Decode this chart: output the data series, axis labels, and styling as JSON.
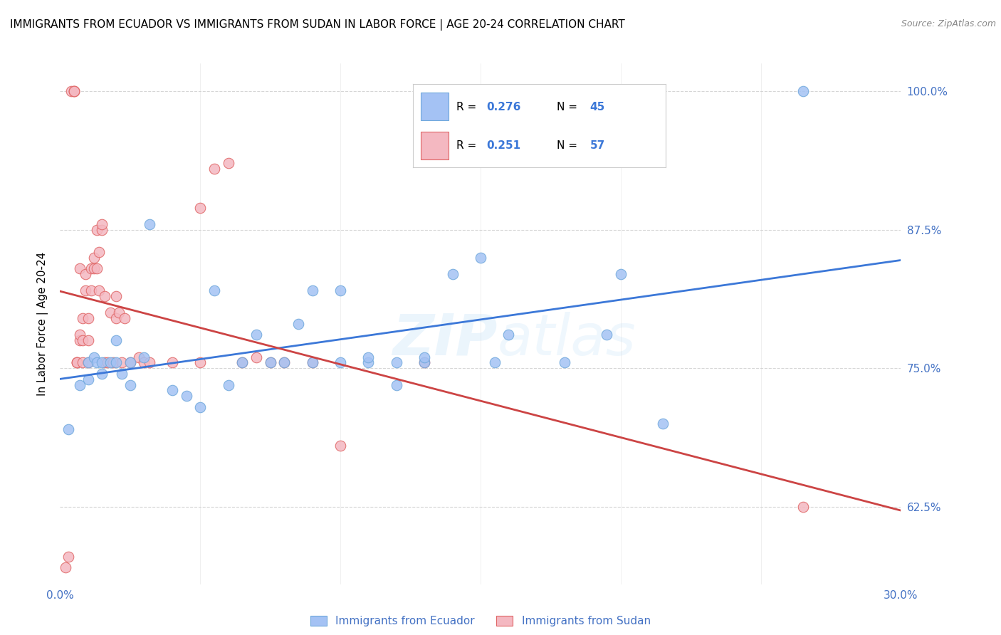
{
  "title": "IMMIGRANTS FROM ECUADOR VS IMMIGRANTS FROM SUDAN IN LABOR FORCE | AGE 20-24 CORRELATION CHART",
  "source": "Source: ZipAtlas.com",
  "ylabel": "In Labor Force | Age 20-24",
  "watermark": "ZIPatlas",
  "xlim": [
    0.0,
    0.3
  ],
  "ylim": [
    0.555,
    1.025
  ],
  "yticks": [
    0.625,
    0.75,
    0.875,
    1.0
  ],
  "ytick_labels": [
    "62.5%",
    "75.0%",
    "87.5%",
    "100.0%"
  ],
  "xticks": [
    0.0,
    0.05,
    0.1,
    0.15,
    0.2,
    0.25,
    0.3
  ],
  "xtick_labels": [
    "0.0%",
    "",
    "",
    "",
    "",
    "",
    "30.0%"
  ],
  "ecuador_color": "#a4c2f4",
  "ecuador_edge": "#6fa8dc",
  "sudan_color": "#f4b8c1",
  "sudan_edge": "#e06666",
  "ecuador_R": 0.276,
  "ecuador_N": 45,
  "sudan_R": 0.251,
  "sudan_N": 57,
  "ecuador_line_color": "#3c78d8",
  "sudan_line_color": "#cc4444",
  "background_color": "#ffffff",
  "grid_color": "#cccccc",
  "ecuador_x": [
    0.003,
    0.007,
    0.01,
    0.01,
    0.012,
    0.013,
    0.015,
    0.015,
    0.018,
    0.02,
    0.02,
    0.022,
    0.025,
    0.025,
    0.03,
    0.032,
    0.04,
    0.045,
    0.05,
    0.055,
    0.06,
    0.065,
    0.07,
    0.075,
    0.08,
    0.085,
    0.09,
    0.09,
    0.1,
    0.1,
    0.11,
    0.11,
    0.12,
    0.12,
    0.13,
    0.13,
    0.14,
    0.15,
    0.155,
    0.16,
    0.18,
    0.195,
    0.2,
    0.215,
    0.265
  ],
  "ecuador_y": [
    0.695,
    0.735,
    0.74,
    0.755,
    0.76,
    0.755,
    0.745,
    0.755,
    0.755,
    0.755,
    0.775,
    0.745,
    0.735,
    0.755,
    0.76,
    0.88,
    0.73,
    0.725,
    0.715,
    0.82,
    0.735,
    0.755,
    0.78,
    0.755,
    0.755,
    0.79,
    0.755,
    0.82,
    0.755,
    0.82,
    0.755,
    0.76,
    0.735,
    0.755,
    0.755,
    0.76,
    0.835,
    0.85,
    0.755,
    0.78,
    0.755,
    0.78,
    0.835,
    0.7,
    1.0
  ],
  "sudan_x": [
    0.002,
    0.003,
    0.004,
    0.005,
    0.005,
    0.005,
    0.006,
    0.006,
    0.006,
    0.007,
    0.007,
    0.007,
    0.008,
    0.008,
    0.008,
    0.009,
    0.009,
    0.01,
    0.01,
    0.01,
    0.011,
    0.011,
    0.012,
    0.012,
    0.013,
    0.013,
    0.014,
    0.014,
    0.015,
    0.015,
    0.016,
    0.016,
    0.017,
    0.018,
    0.019,
    0.02,
    0.02,
    0.021,
    0.022,
    0.023,
    0.025,
    0.028,
    0.03,
    0.032,
    0.04,
    0.05,
    0.05,
    0.055,
    0.06,
    0.065,
    0.07,
    0.075,
    0.08,
    0.09,
    0.1,
    0.13,
    0.265
  ],
  "sudan_y": [
    0.57,
    0.58,
    1.0,
    1.0,
    1.0,
    1.0,
    0.755,
    0.755,
    0.755,
    0.775,
    0.78,
    0.84,
    0.755,
    0.775,
    0.795,
    0.82,
    0.835,
    0.755,
    0.775,
    0.795,
    0.82,
    0.84,
    0.84,
    0.85,
    0.84,
    0.875,
    0.855,
    0.82,
    0.875,
    0.88,
    0.815,
    0.755,
    0.755,
    0.8,
    0.755,
    0.795,
    0.815,
    0.8,
    0.755,
    0.795,
    0.755,
    0.76,
    0.755,
    0.755,
    0.755,
    0.895,
    0.755,
    0.93,
    0.935,
    0.755,
    0.76,
    0.755,
    0.755,
    0.755,
    0.68,
    0.755,
    0.625
  ]
}
